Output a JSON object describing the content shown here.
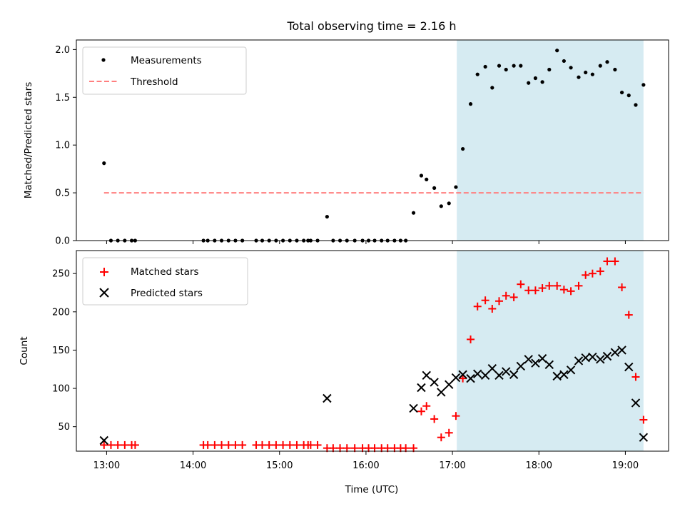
{
  "chart_data": {
    "title": "Total observing time = 2.16 h",
    "xlabel": "Time (UTC)",
    "x_units": "hours UTC (decimal)",
    "xlim": [
      12.65,
      19.5
    ],
    "x_ticks": [
      13,
      14,
      15,
      16,
      17,
      18,
      19
    ],
    "x_tick_labels": [
      "13:00",
      "14:00",
      "15:00",
      "16:00",
      "17:00",
      "18:00",
      "19:00"
    ],
    "shaded_interval": [
      17.05,
      19.21
    ],
    "shaded_color": "#add8e6",
    "panels": [
      {
        "name": "ratio",
        "type": "scatter",
        "ylabel": "Matched/Predicted stars",
        "ylim": [
          0,
          2.1
        ],
        "y_ticks": [
          0.0,
          0.5,
          1.0,
          1.5,
          2.0
        ],
        "y_tick_labels": [
          "0.0",
          "0.5",
          "1.0",
          "1.5",
          "2.0"
        ],
        "legend_position": "upper-left",
        "series": [
          {
            "name": "Measurements",
            "marker": "dot",
            "color": "#000000",
            "x": [
              12.97,
              13.05,
              13.13,
              13.21,
              13.29,
              13.33,
              14.12,
              14.17,
              14.25,
              14.33,
              14.41,
              14.49,
              14.57,
              14.73,
              14.8,
              14.88,
              14.96,
              15.04,
              15.12,
              15.2,
              15.28,
              15.33,
              15.36,
              15.44,
              15.55,
              15.62,
              15.7,
              15.78,
              15.87,
              15.96,
              16.03,
              16.1,
              16.18,
              16.25,
              16.33,
              16.4,
              16.46,
              16.55,
              16.64,
              16.7,
              16.79,
              16.87,
              16.96,
              17.04,
              17.12,
              17.21,
              17.29,
              17.38,
              17.46,
              17.54,
              17.62,
              17.71,
              17.79,
              17.88,
              17.96,
              18.04,
              18.12,
              18.21,
              18.29,
              18.37,
              18.46,
              18.54,
              18.62,
              18.71,
              18.79,
              18.88,
              18.96,
              19.04,
              19.12,
              19.21
            ],
            "y": [
              0.81,
              0.0,
              0.0,
              0.0,
              0.0,
              0.0,
              0.0,
              0.0,
              0.0,
              0.0,
              0.0,
              0.0,
              0.0,
              0.0,
              0.0,
              0.0,
              0.0,
              0.0,
              0.0,
              0.0,
              0.0,
              0.0,
              0.0,
              0.0,
              0.25,
              0.0,
              0.0,
              0.0,
              0.0,
              0.0,
              0.0,
              0.0,
              0.0,
              0.0,
              0.0,
              0.0,
              0.0,
              0.29,
              0.68,
              0.64,
              0.55,
              0.36,
              0.39,
              0.56,
              0.96,
              1.43,
              1.74,
              1.82,
              1.6,
              1.83,
              1.79,
              1.83,
              1.83,
              1.65,
              1.7,
              1.66,
              1.79,
              1.99,
              1.88,
              1.81,
              1.71,
              1.76,
              1.74,
              1.83,
              1.87,
              1.79,
              1.55,
              1.52,
              1.42,
              1.63
            ]
          },
          {
            "name": "Threshold",
            "marker": "dashed-line",
            "color": "#ff7f7f",
            "x": [
              12.97,
              19.21
            ],
            "y": [
              0.5,
              0.5
            ]
          }
        ]
      },
      {
        "name": "counts",
        "type": "scatter",
        "ylabel": "Count",
        "ylim": [
          18,
          280
        ],
        "y_ticks": [
          50,
          100,
          150,
          200,
          250
        ],
        "y_tick_labels": [
          "50",
          "100",
          "150",
          "200",
          "250"
        ],
        "legend_position": "upper-left",
        "series": [
          {
            "name": "Matched stars",
            "marker": "plus",
            "color": "#ff0000",
            "x": [
              12.97,
              13.05,
              13.13,
              13.21,
              13.29,
              13.33,
              14.12,
              14.17,
              14.25,
              14.33,
              14.41,
              14.49,
              14.57,
              14.73,
              14.8,
              14.88,
              14.96,
              15.04,
              15.12,
              15.2,
              15.28,
              15.33,
              15.36,
              15.44,
              15.55,
              15.62,
              15.7,
              15.78,
              15.87,
              15.96,
              16.03,
              16.1,
              16.18,
              16.25,
              16.33,
              16.4,
              16.46,
              16.55,
              16.64,
              16.7,
              16.79,
              16.87,
              16.96,
              17.04,
              17.12,
              17.21,
              17.29,
              17.38,
              17.46,
              17.54,
              17.62,
              17.71,
              17.79,
              17.88,
              17.96,
              18.04,
              18.12,
              18.21,
              18.29,
              18.37,
              18.46,
              18.54,
              18.62,
              18.71,
              18.79,
              18.88,
              18.96,
              19.04,
              19.12,
              19.21
            ],
            "y": [
              26,
              26,
              26,
              26,
              26,
              26,
              26,
              26,
              26,
              26,
              26,
              26,
              26,
              26,
              26,
              26,
              26,
              26,
              26,
              26,
              26,
              26,
              26,
              26,
              22,
              22,
              22,
              22,
              22,
              22,
              22,
              22,
              22,
              22,
              22,
              22,
              22,
              22,
              70,
              77,
              60,
              36,
              42,
              64,
              113,
              164,
              207,
              215,
              204,
              214,
              221,
              219,
              236,
              228,
              228,
              231,
              234,
              234,
              229,
              227,
              234,
              248,
              250,
              253,
              266,
              266,
              232,
              196,
              115,
              59
            ]
          },
          {
            "name": "Predicted stars",
            "marker": "x",
            "color": "#000000",
            "x": [
              12.97,
              15.55,
              16.55,
              16.64,
              16.7,
              16.79,
              16.87,
              16.96,
              17.04,
              17.12,
              17.21,
              17.29,
              17.38,
              17.46,
              17.54,
              17.62,
              17.71,
              17.79,
              17.88,
              17.96,
              18.04,
              18.12,
              18.21,
              18.29,
              18.37,
              18.46,
              18.54,
              18.62,
              18.71,
              18.79,
              18.88,
              18.96,
              19.04,
              19.12,
              19.21
            ],
            "y": [
              32,
              87,
              74,
              101,
              117,
              108,
              95,
              105,
              114,
              118,
              113,
              119,
              117,
              126,
              117,
              122,
              118,
              129,
              138,
              133,
              139,
              131,
              116,
              118,
              124,
              136,
              140,
              141,
              138,
              142,
              147,
              150,
              128,
              81,
              36
            ]
          }
        ]
      }
    ]
  }
}
